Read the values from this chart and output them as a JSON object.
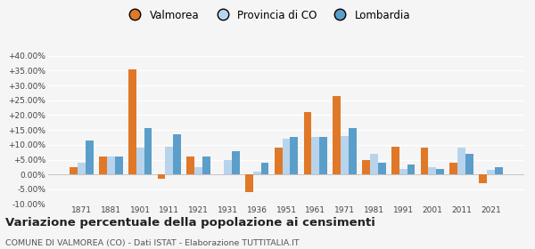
{
  "years": [
    1871,
    1881,
    1901,
    1911,
    1921,
    1931,
    1936,
    1951,
    1961,
    1971,
    1981,
    1991,
    2001,
    2011,
    2021
  ],
  "valmorea": [
    2.5,
    6.0,
    35.5,
    -1.5,
    6.0,
    0.2,
    -6.0,
    9.0,
    21.0,
    26.5,
    5.0,
    9.5,
    9.0,
    4.0,
    -3.0
  ],
  "provincia_co": [
    4.0,
    6.0,
    9.0,
    9.5,
    2.5,
    5.0,
    1.0,
    12.0,
    12.5,
    13.0,
    7.0,
    2.0,
    2.5,
    9.0,
    1.5
  ],
  "lombardia": [
    11.5,
    6.0,
    15.5,
    13.5,
    6.0,
    8.0,
    4.0,
    12.5,
    12.5,
    15.5,
    4.0,
    3.5,
    2.0,
    7.0,
    2.5
  ],
  "color_valmorea": "#E07828",
  "color_provincia": "#B8D4EC",
  "color_lombardia": "#5B9EC9",
  "ylim": [
    -10,
    42
  ],
  "yticks": [
    -10,
    -5,
    0,
    5,
    10,
    15,
    20,
    25,
    30,
    35,
    40
  ],
  "title": "Variazione percentuale della popolazione ai censimenti",
  "subtitle": "COMUNE DI VALMOREA (CO) - Dati ISTAT - Elaborazione TUTTITALIA.IT",
  "legend_labels": [
    "Valmorea",
    "Provincia di CO",
    "Lombardia"
  ],
  "background_color": "#f5f5f5"
}
